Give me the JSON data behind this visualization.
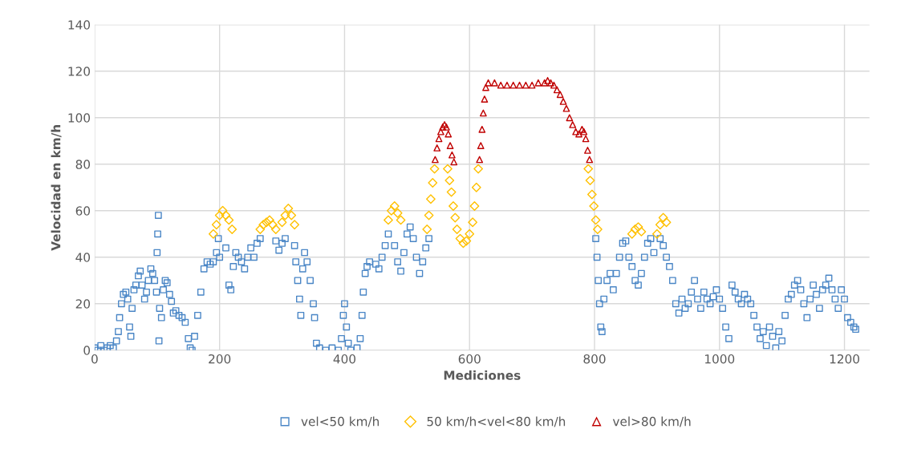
{
  "chart_data": {
    "type": "scatter",
    "xlabel": "Mediciones",
    "ylabel": "Velocidad en km/h",
    "xlim": [
      0,
      1240
    ],
    "xticks": [
      0,
      200,
      400,
      600,
      800,
      1000,
      1200
    ],
    "ylim": [
      0,
      140
    ],
    "yticks": [
      0,
      20,
      40,
      60,
      80,
      100,
      120,
      140
    ],
    "grid": true,
    "legend": "bottom",
    "series": [
      {
        "name": "vel<50 km/h",
        "color": "#4a86c6",
        "marker": "square",
        "x": [
          0,
          5,
          10,
          15,
          20,
          25,
          30,
          35,
          38,
          40,
          43,
          46,
          50,
          53,
          56,
          58,
          60,
          63,
          66,
          70,
          73,
          76,
          80,
          83,
          86,
          90,
          93,
          96,
          99,
          100,
          101,
          102,
          103,
          104,
          107,
          110,
          113,
          116,
          120,
          123,
          126,
          130,
          135,
          140,
          145,
          150,
          153,
          156,
          160,
          165,
          170,
          175,
          180,
          185,
          190,
          195,
          198,
          200,
          210,
          215,
          218,
          222,
          226,
          230,
          235,
          240,
          245,
          250,
          255,
          260,
          265,
          290,
          295,
          300,
          305,
          320,
          322,
          325,
          328,
          330,
          333,
          336,
          340,
          345,
          350,
          352,
          355,
          360,
          370,
          380,
          390,
          395,
          398,
          400,
          403,
          406,
          410,
          420,
          425,
          428,
          430,
          433,
          436,
          440,
          450,
          455,
          460,
          465,
          470,
          480,
          485,
          490,
          495,
          500,
          505,
          510,
          515,
          520,
          525,
          530,
          535,
          802,
          804,
          806,
          808,
          810,
          812,
          815,
          820,
          825,
          830,
          835,
          840,
          845,
          850,
          855,
          860,
          865,
          870,
          875,
          880,
          885,
          890,
          895,
          905,
          910,
          915,
          920,
          925,
          930,
          935,
          940,
          945,
          950,
          955,
          960,
          965,
          970,
          975,
          980,
          985,
          990,
          995,
          1000,
          1005,
          1010,
          1015,
          1020,
          1025,
          1030,
          1035,
          1040,
          1045,
          1050,
          1055,
          1060,
          1065,
          1070,
          1075,
          1080,
          1085,
          1090,
          1095,
          1100,
          1105,
          1110,
          1115,
          1120,
          1125,
          1130,
          1135,
          1140,
          1145,
          1150,
          1155,
          1160,
          1165,
          1170,
          1175,
          1180,
          1185,
          1190,
          1195,
          1200,
          1205,
          1210,
          1215,
          1218
        ],
        "values": [
          1,
          0,
          2,
          0,
          1,
          2,
          1,
          4,
          8,
          14,
          20,
          24,
          25,
          22,
          10,
          6,
          18,
          26,
          28,
          32,
          34,
          28,
          22,
          25,
          30,
          35,
          33,
          30,
          25,
          42,
          50,
          58,
          4,
          18,
          14,
          26,
          30,
          29,
          24,
          21,
          16,
          17,
          15,
          14,
          12,
          5,
          1,
          0,
          6,
          15,
          25,
          35,
          38,
          37,
          38,
          42,
          48,
          40,
          44,
          28,
          26,
          36,
          42,
          40,
          38,
          35,
          40,
          44,
          40,
          46,
          48,
          47,
          43,
          46,
          48,
          45,
          38,
          30,
          22,
          15,
          35,
          42,
          38,
          30,
          20,
          14,
          3,
          1,
          0,
          1,
          0,
          5,
          15,
          20,
          10,
          3,
          0,
          1,
          5,
          15,
          25,
          33,
          36,
          38,
          37,
          35,
          40,
          45,
          50,
          45,
          38,
          34,
          42,
          50,
          53,
          48,
          40,
          33,
          38,
          44,
          48,
          48,
          40,
          30,
          20,
          10,
          8,
          22,
          30,
          33,
          26,
          33,
          40,
          46,
          47,
          40,
          36,
          30,
          28,
          33,
          40,
          46,
          48,
          42,
          48,
          45,
          40,
          36,
          30,
          20,
          16,
          22,
          18,
          20,
          25,
          30,
          22,
          18,
          25,
          22,
          20,
          23,
          26,
          22,
          18,
          10,
          5,
          28,
          25,
          22,
          20,
          24,
          22,
          20,
          15,
          10,
          5,
          8,
          2,
          10,
          6,
          1,
          8,
          4,
          15,
          22,
          24,
          28,
          30,
          26,
          20,
          14,
          22,
          28,
          24,
          18,
          26,
          28,
          31,
          26,
          22,
          18,
          26,
          22,
          14,
          12,
          10,
          9
        ]
      },
      {
        "name": "50 km/h<vel<80 km/h",
        "color": "#ffc000",
        "marker": "diamond",
        "x": [
          190,
          195,
          200,
          205,
          210,
          215,
          220,
          265,
          270,
          275,
          280,
          285,
          290,
          300,
          305,
          310,
          315,
          320,
          470,
          475,
          480,
          485,
          490,
          532,
          535,
          538,
          541,
          544,
          565,
          568,
          571,
          574,
          577,
          580,
          585,
          590,
          595,
          600,
          605,
          608,
          611,
          614,
          790,
          793,
          796,
          799,
          802,
          805,
          860,
          865,
          870,
          875,
          900,
          905,
          910,
          915
        ],
        "values": [
          50,
          54,
          58,
          60,
          58,
          56,
          52,
          52,
          54,
          55,
          56,
          54,
          52,
          55,
          58,
          61,
          58,
          54,
          56,
          60,
          62,
          59,
          56,
          52,
          58,
          65,
          72,
          78,
          78,
          73,
          68,
          62,
          57,
          52,
          48,
          46,
          47,
          50,
          55,
          62,
          70,
          78,
          78,
          73,
          67,
          62,
          56,
          52,
          50,
          52,
          53,
          51,
          50,
          54,
          57,
          55
        ]
      },
      {
        "name": "vel>80 km/h",
        "color": "#c00000",
        "marker": "triangle",
        "x": [
          545,
          548,
          551,
          554,
          557,
          560,
          563,
          566,
          569,
          572,
          575,
          616,
          618,
          620,
          622,
          624,
          626,
          630,
          640,
          650,
          660,
          670,
          680,
          690,
          700,
          710,
          720,
          725,
          730,
          735,
          740,
          745,
          750,
          755,
          760,
          765,
          770,
          775,
          780,
          783,
          786,
          789,
          792
        ],
        "values": [
          82,
          87,
          91,
          94,
          96,
          97,
          96,
          93,
          88,
          84,
          81,
          82,
          88,
          95,
          102,
          108,
          113,
          115,
          115,
          114,
          114,
          114,
          114,
          114,
          114,
          115,
          115,
          116,
          115,
          114,
          112,
          110,
          107,
          104,
          100,
          97,
          94,
          93,
          95,
          94,
          91,
          86,
          82
        ]
      }
    ]
  }
}
